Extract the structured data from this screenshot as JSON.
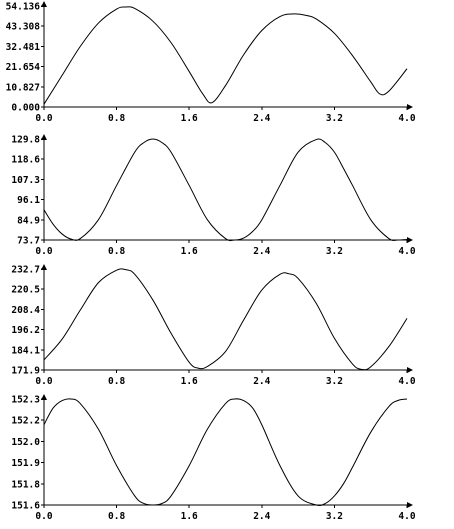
{
  "chart_data": [
    {
      "type": "line",
      "title": "",
      "xlabel": "",
      "ylabel": "",
      "xlim": [
        0,
        4.0
      ],
      "ylim": [
        0.0,
        54.136
      ],
      "xticks": [
        "0.0",
        "0.8",
        "1.6",
        "2.4",
        "3.2",
        "4.0"
      ],
      "yticks": [
        "0.000",
        "10.827",
        "21.654",
        "32.481",
        "43.308",
        "54.136"
      ],
      "grid": false,
      "series": [
        {
          "x": [
            0.0,
            0.2,
            0.4,
            0.6,
            0.8,
            0.9,
            1.0,
            1.2,
            1.4,
            1.6,
            1.75,
            1.85,
            2.0,
            2.2,
            2.4,
            2.6,
            2.75,
            2.9,
            3.0,
            3.2,
            3.4,
            3.6,
            3.7,
            3.8,
            4.0
          ],
          "y": [
            1.5,
            17.0,
            32.5,
            45.0,
            52.5,
            53.6,
            52.8,
            46.0,
            34.5,
            19.0,
            7.0,
            2.3,
            11.5,
            28.0,
            41.0,
            48.5,
            49.9,
            49.0,
            47.2,
            39.5,
            27.5,
            13.5,
            7.0,
            8.5,
            20.5
          ]
        }
      ]
    },
    {
      "type": "line",
      "title": "",
      "xlabel": "",
      "ylabel": "",
      "xlim": [
        0,
        4.0
      ],
      "ylim": [
        73.7,
        129.8
      ],
      "xticks": [
        "0.0",
        "0.8",
        "1.6",
        "2.4",
        "3.2",
        "4.0"
      ],
      "yticks": [
        "73.7",
        "84.9",
        "96.1",
        "107.3",
        "118.6",
        "129.8"
      ],
      "grid": false,
      "series": [
        {
          "x": [
            0.0,
            0.1,
            0.2,
            0.3,
            0.4,
            0.6,
            0.8,
            1.0,
            1.1,
            1.2,
            1.3,
            1.4,
            1.6,
            1.8,
            2.0,
            2.1,
            2.2,
            2.3,
            2.4,
            2.6,
            2.8,
            3.0,
            3.1,
            3.2,
            3.3,
            3.4,
            3.6,
            3.8,
            3.9,
            4.0
          ],
          "y": [
            90.5,
            82.5,
            77.0,
            74.2,
            74.5,
            85.0,
            104.0,
            122.5,
            127.8,
            129.8,
            127.8,
            122.5,
            104.0,
            85.0,
            74.5,
            73.7,
            74.8,
            78.5,
            84.9,
            104.0,
            122.5,
            129.5,
            127.8,
            122.5,
            113.5,
            104.0,
            85.0,
            74.5,
            73.7,
            74.0
          ]
        }
      ]
    },
    {
      "type": "line",
      "title": "",
      "xlabel": "",
      "ylabel": "",
      "xlim": [
        0,
        4.0
      ],
      "ylim": [
        171.9,
        232.7
      ],
      "xticks": [
        "0.0",
        "0.8",
        "1.6",
        "2.4",
        "3.2",
        "4.0"
      ],
      "yticks": [
        "171.9",
        "184.1",
        "196.2",
        "208.4",
        "220.5",
        "232.7"
      ],
      "grid": false,
      "series": [
        {
          "x": [
            0.0,
            0.2,
            0.4,
            0.6,
            0.8,
            0.9,
            1.0,
            1.2,
            1.4,
            1.6,
            1.7,
            1.8,
            2.0,
            2.2,
            2.4,
            2.6,
            2.7,
            2.8,
            3.0,
            3.2,
            3.4,
            3.5,
            3.6,
            3.8,
            4.0
          ],
          "y": [
            178.0,
            190.5,
            208.0,
            224.5,
            232.0,
            232.3,
            229.5,
            214.0,
            194.0,
            176.5,
            173.0,
            174.0,
            183.0,
            202.0,
            220.0,
            229.5,
            229.8,
            227.0,
            212.0,
            191.0,
            175.5,
            172.3,
            173.8,
            186.0,
            203.0
          ]
        }
      ]
    },
    {
      "type": "line",
      "title": "",
      "xlabel": "",
      "ylabel": "",
      "xlim": [
        0,
        4.0
      ],
      "ylim": [
        151.6,
        152.3
      ],
      "xticks": [
        "0.0",
        "0.8",
        "1.6",
        "2.4",
        "3.2",
        "4.0"
      ],
      "yticks": [
        "151.6",
        "151.8",
        "151.9",
        "152.0",
        "152.2",
        "152.3"
      ],
      "grid": false,
      "series": [
        {
          "x": [
            0.0,
            0.1,
            0.2,
            0.3,
            0.4,
            0.6,
            0.8,
            1.0,
            1.1,
            1.2,
            1.3,
            1.4,
            1.6,
            1.8,
            2.0,
            2.1,
            2.2,
            2.3,
            2.4,
            2.6,
            2.8,
            3.0,
            3.1,
            3.2,
            3.3,
            3.4,
            3.6,
            3.8,
            3.9,
            4.0
          ],
          "y": [
            152.13,
            152.24,
            152.29,
            152.3,
            152.27,
            152.1,
            151.86,
            151.66,
            151.61,
            151.6,
            151.61,
            151.66,
            151.86,
            152.1,
            152.27,
            152.3,
            152.29,
            152.24,
            152.13,
            151.86,
            151.66,
            151.6,
            151.61,
            151.66,
            151.74,
            151.85,
            152.08,
            152.25,
            152.29,
            152.3
          ]
        }
      ]
    }
  ]
}
